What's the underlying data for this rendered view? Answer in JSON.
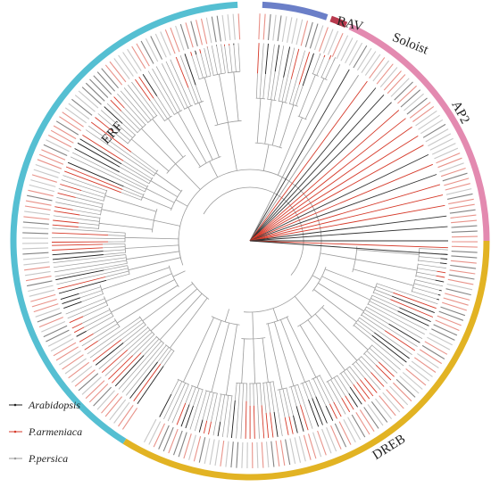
{
  "colors": {
    "ERF": "#55bfd2",
    "RAV": "#6b7fc8",
    "Soloist": "#b83a4e",
    "AP2": "#e38ab0",
    "DREB": "#e2b323",
    "arabidopsis": "#1f1f1f",
    "armeniaca": "#d63a2a",
    "persica": "#9a9a9a"
  },
  "clades": [
    {
      "key": "ERF",
      "label": "ERF",
      "start_deg": -238,
      "end_deg": -93
    },
    {
      "key": "RAV",
      "label": "RAV",
      "start_deg": -87,
      "end_deg": -71
    },
    {
      "key": "Soloist",
      "label": "Soloist",
      "start_deg": -70,
      "end_deg": -66
    },
    {
      "key": "AP2",
      "label": "AP2",
      "start_deg": -65,
      "end_deg": 0
    },
    {
      "key": "DREB",
      "label": "DREB",
      "start_deg": 0,
      "end_deg": 122
    }
  ],
  "legend": {
    "items": [
      {
        "key": "arabidopsis",
        "label": "Arabidopsis"
      },
      {
        "key": "armeniaca",
        "label": "P.armeniaca"
      },
      {
        "key": "persica",
        "label": "P.persica"
      }
    ]
  }
}
